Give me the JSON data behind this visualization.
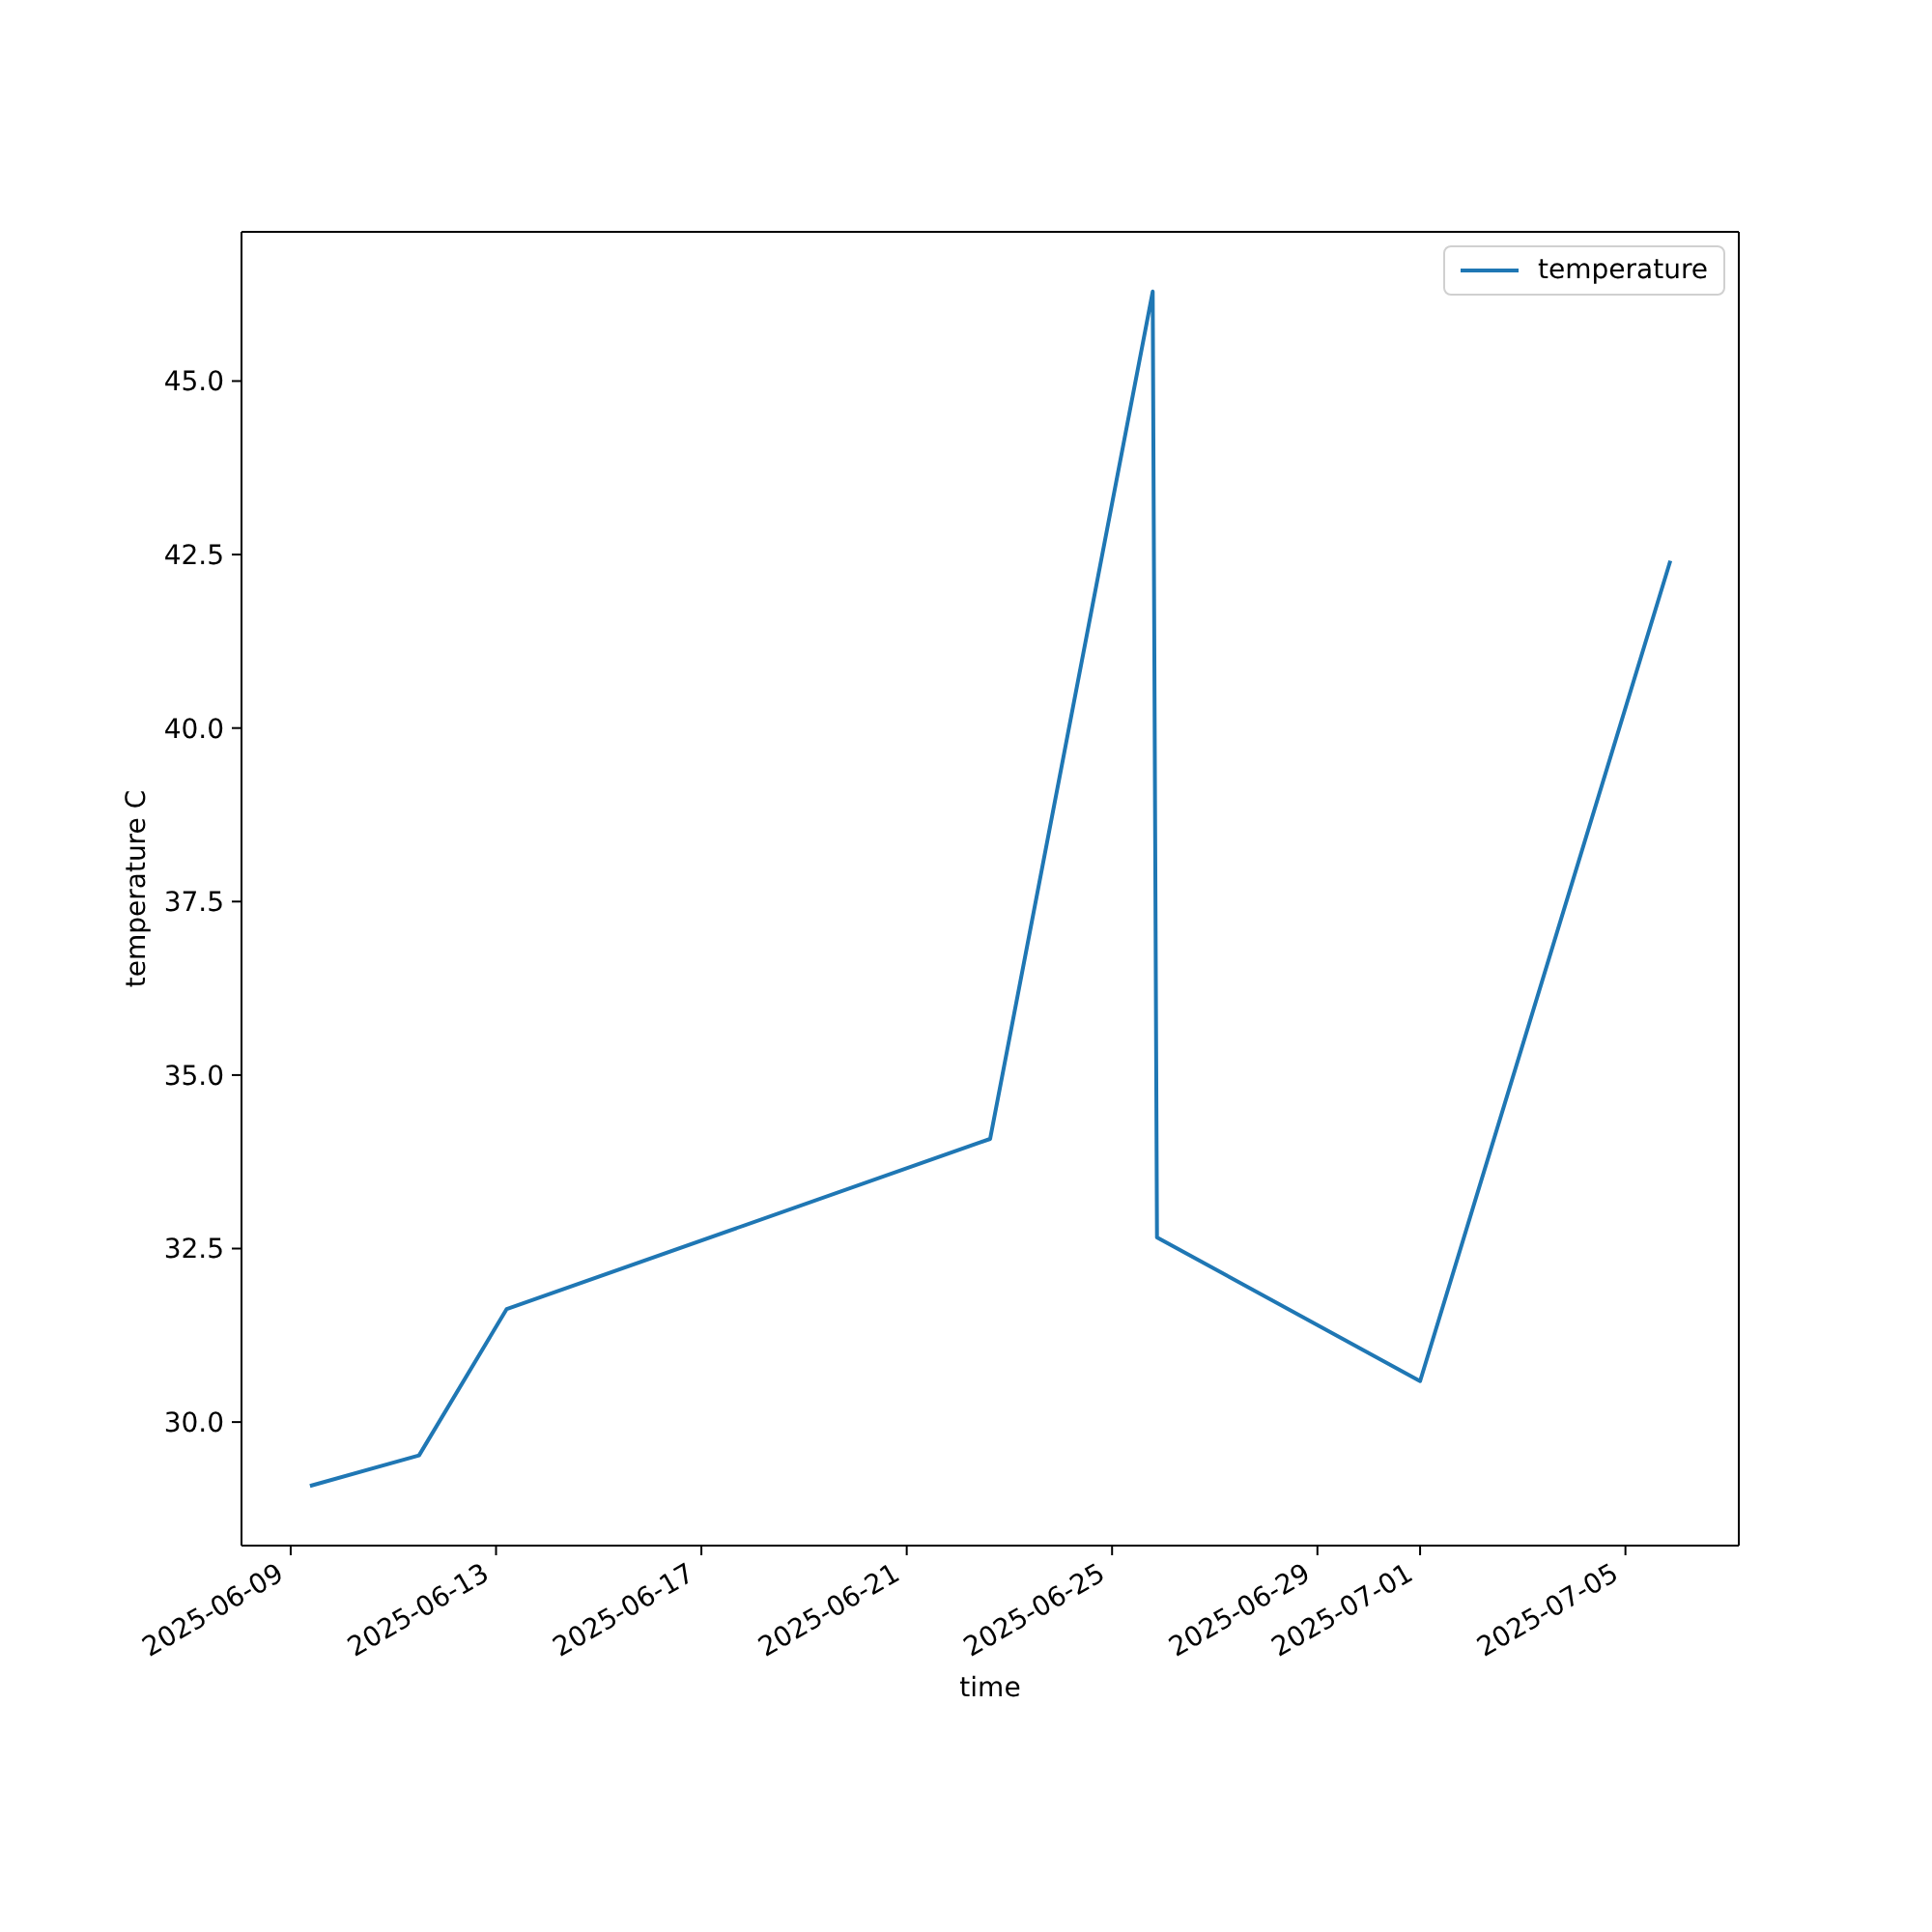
{
  "chart_data": {
    "type": "line",
    "xlabel": "time",
    "ylabel": "temperature C",
    "x": [
      "2025-06-09T09:00",
      "2025-06-11T12:00",
      "2025-06-13T05:00",
      "2025-06-22T15:00",
      "2025-06-25T19:00",
      "2025-06-25T21:00",
      "2025-07-01T00:00",
      "2025-07-05T21:00"
    ],
    "series": [
      {
        "name": "temperature",
        "color": "#1f77b4",
        "values": [
          29.08,
          29.52,
          31.63,
          34.08,
          46.29,
          32.66,
          30.59,
          42.41
        ]
      }
    ],
    "xlim": [
      "2025-06-08T01:00",
      "2025-07-07T05:00"
    ],
    "xticks": [
      "2025-06-09",
      "2025-06-13",
      "2025-06-17",
      "2025-06-21",
      "2025-06-25",
      "2025-06-29",
      "2025-07-01",
      "2025-07-05"
    ],
    "ylim": [
      28.22,
      47.15
    ],
    "yticks": [
      {
        "value": 30,
        "label": "30.0"
      },
      32.5,
      {
        "value": 35,
        "label": "35.0"
      },
      37.5,
      {
        "value": 40,
        "label": "40.0"
      },
      42.5,
      {
        "value": 45,
        "label": "45.0"
      }
    ],
    "legend": "top right"
  }
}
